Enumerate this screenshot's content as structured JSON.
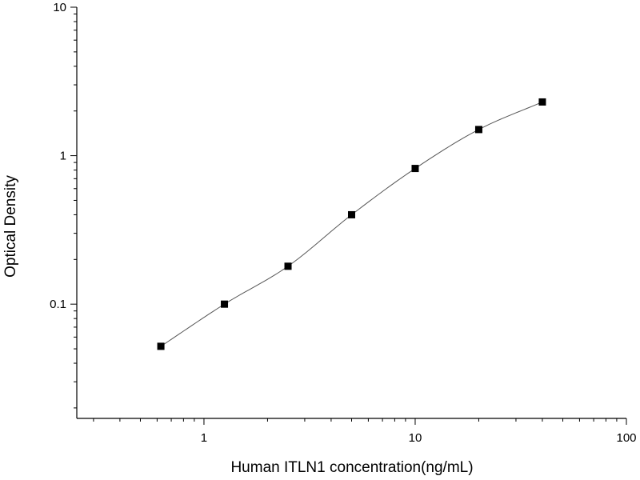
{
  "chart_data": {
    "type": "scatter",
    "title": "",
    "xlabel": "Human ITLN1 concentration(ng/mL)",
    "ylabel": "Optical Density",
    "x_scale": "log",
    "y_scale": "log",
    "xlim": [
      0.25,
      100
    ],
    "ylim": [
      0.017,
      10
    ],
    "x_ticks": [
      {
        "value": 1,
        "label": "1"
      },
      {
        "value": 10,
        "label": "10"
      },
      {
        "value": 100,
        "label": "100"
      }
    ],
    "y_ticks": [
      {
        "value": 0.1,
        "label": "0.1"
      },
      {
        "value": 1,
        "label": "1"
      },
      {
        "value": 10,
        "label": "10"
      }
    ],
    "grid": false,
    "legend": "none",
    "series": [
      {
        "x": [
          0.625,
          1.25,
          2.5,
          5,
          10,
          20,
          40
        ],
        "y": [
          0.052,
          0.1,
          0.18,
          0.4,
          0.82,
          1.5,
          2.3
        ],
        "marker": "square",
        "fit_curve": true,
        "color": "#000000"
      }
    ]
  }
}
